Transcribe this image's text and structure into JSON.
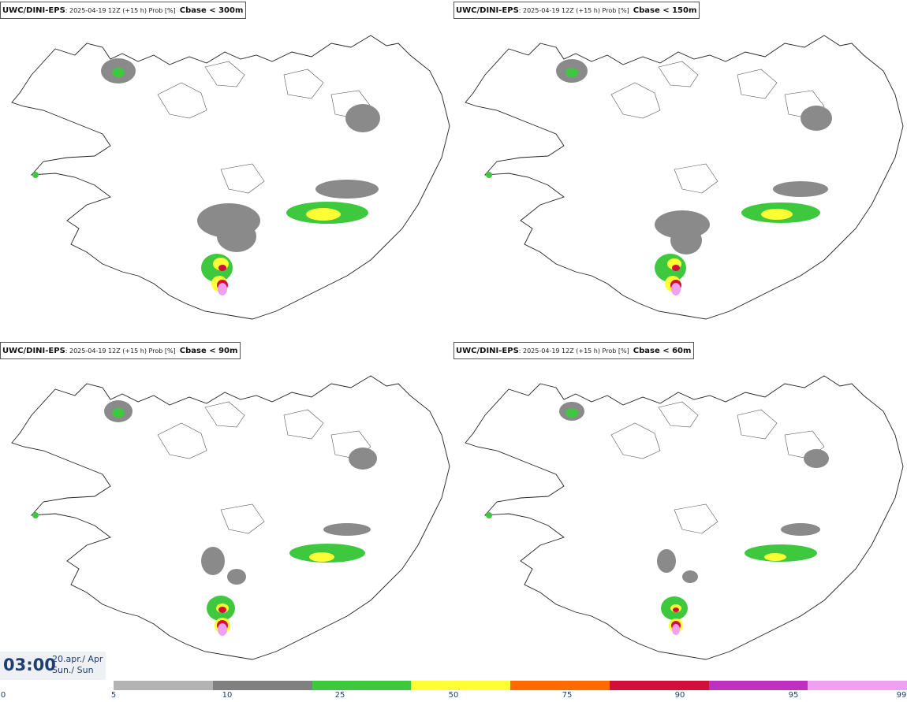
{
  "panels": [
    {
      "model": "UWC/DINI-EPS",
      "info": ": 2025-04-19 12Z (+15 h) Prob [%]",
      "field": "Cbase < 300m"
    },
    {
      "model": "UWC/DINI-EPS",
      "info": ": 2025-04-19 12Z (+15 h) Prob [%]",
      "field": "Cbase < 150m"
    },
    {
      "model": "UWC/DINI-EPS",
      "info": ": 2025-04-19 12Z (+15 h) Prob [%]",
      "field": "Cbase < 90m"
    },
    {
      "model": "UWC/DINI-EPS",
      "info": ": 2025-04-19 12Z (+15 h) Prob [%]",
      "field": "Cbase < 60m"
    }
  ],
  "valid_time": {
    "time": "03:00",
    "date": "20.apr./ Apr",
    "day": "Sun./ Sun"
  },
  "legend": {
    "ticks": [
      "0",
      "5",
      "10",
      "25",
      "50",
      "75",
      "90",
      "95",
      "99"
    ],
    "colors": [
      "#b3b3b3",
      "#808080",
      "#3ec83e",
      "#ffff33",
      "#ff6a00",
      "#d0103a",
      "#c030c0",
      "#f0a0f0"
    ]
  }
}
